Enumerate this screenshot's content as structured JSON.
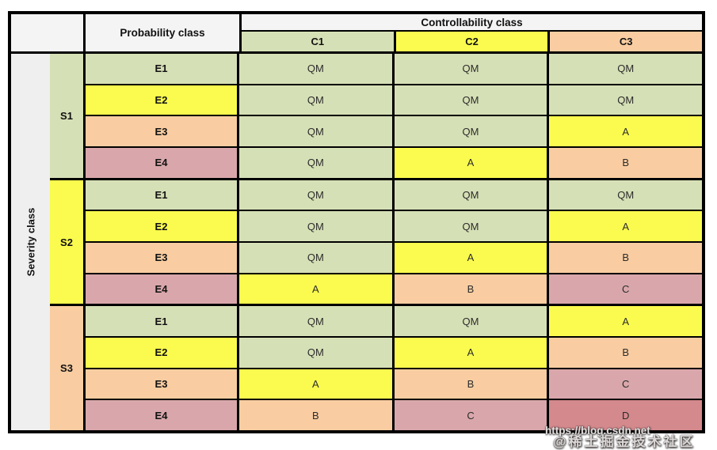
{
  "page": {
    "background": "#ffffff"
  },
  "table": {
    "probability_header": "Probability class",
    "controllability_header": "Controllability class",
    "severity_label": "Severity class",
    "controllability_columns": [
      {
        "label": "C1",
        "color": "#d6e0b6"
      },
      {
        "label": "C2",
        "color": "#fbfb4f"
      },
      {
        "label": "C3",
        "color": "#f9cda1"
      }
    ],
    "level_colors": {
      "QM": "#d6e0b6",
      "A": "#fbfb4f",
      "B": "#f9cda1",
      "C": "#d9a7ab",
      "D": "#d4898d"
    },
    "e_row_colors": {
      "E1": "#d6e0b6",
      "E2": "#fbfb4f",
      "E3": "#f9cda1",
      "E4": "#d9a7ab"
    },
    "blocks": [
      {
        "severity": "S1",
        "color": "#d6e0b6",
        "rows": [
          {
            "probability": "E1",
            "values": [
              "QM",
              "QM",
              "QM"
            ]
          },
          {
            "probability": "E2",
            "values": [
              "QM",
              "QM",
              "QM"
            ]
          },
          {
            "probability": "E3",
            "values": [
              "QM",
              "QM",
              "A"
            ]
          },
          {
            "probability": "E4",
            "values": [
              "QM",
              "A",
              "B"
            ]
          }
        ]
      },
      {
        "severity": "S2",
        "color": "#fbfb4f",
        "rows": [
          {
            "probability": "E1",
            "values": [
              "QM",
              "QM",
              "QM"
            ]
          },
          {
            "probability": "E2",
            "values": [
              "QM",
              "QM",
              "A"
            ]
          },
          {
            "probability": "E3",
            "values": [
              "QM",
              "A",
              "B"
            ]
          },
          {
            "probability": "E4",
            "values": [
              "A",
              "B",
              "C"
            ]
          }
        ]
      },
      {
        "severity": "S3",
        "color": "#f9cda1",
        "rows": [
          {
            "probability": "E1",
            "values": [
              "QM",
              "QM",
              "A"
            ]
          },
          {
            "probability": "E2",
            "values": [
              "QM",
              "A",
              "B"
            ]
          },
          {
            "probability": "E3",
            "values": [
              "A",
              "B",
              "C"
            ]
          },
          {
            "probability": "E4",
            "values": [
              "B",
              "C",
              "D"
            ]
          }
        ]
      }
    ]
  },
  "watermark": {
    "url_text": "https://blog.csdn.net",
    "community_text": "@稀土掘金技术社区"
  },
  "colors": {
    "header_bg": "#f4f4f4",
    "severity_col_bg": "#efefef",
    "border": "#000000"
  }
}
